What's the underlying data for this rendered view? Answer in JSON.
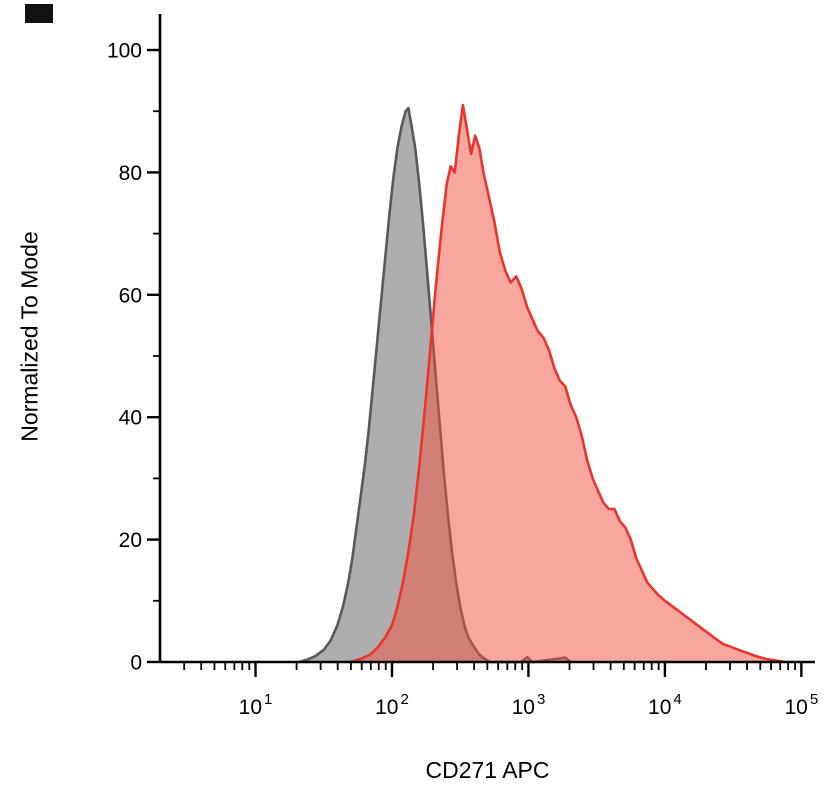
{
  "chart_data": {
    "type": "area",
    "subtype": "flow-cytometry-histogram",
    "title": "",
    "xlabel": "CD271 APC",
    "ylabel": "Normalized To Mode",
    "x_scale": "log10",
    "x_log_range": [
      0.3,
      5.1
    ],
    "ylim": [
      0,
      100
    ],
    "y_major_ticks": [
      0,
      20,
      40,
      60,
      80,
      100
    ],
    "y_minor_step": 10,
    "x_decade_ticks": [
      1,
      2,
      3,
      4,
      5
    ],
    "grid": false,
    "legend": null,
    "axis_color": "#000000",
    "series": [
      {
        "name": "gray-filled-histogram",
        "color": "#58595b",
        "fill": "#7d7d7d",
        "fill_opacity": 0.62,
        "points_logx_y": [
          [
            1.32,
            0
          ],
          [
            1.38,
            0.4
          ],
          [
            1.44,
            1
          ],
          [
            1.5,
            2
          ],
          [
            1.55,
            3.5
          ],
          [
            1.6,
            6
          ],
          [
            1.64,
            9
          ],
          [
            1.68,
            13
          ],
          [
            1.71,
            17
          ],
          [
            1.74,
            22
          ],
          [
            1.77,
            27
          ],
          [
            1.8,
            32
          ],
          [
            1.83,
            38
          ],
          [
            1.86,
            45
          ],
          [
            1.89,
            52
          ],
          [
            1.92,
            59
          ],
          [
            1.95,
            66
          ],
          [
            1.98,
            73
          ],
          [
            2.01,
            79
          ],
          [
            2.04,
            84
          ],
          [
            2.07,
            87.5
          ],
          [
            2.1,
            90
          ],
          [
            2.12,
            90.5
          ],
          [
            2.14,
            88
          ],
          [
            2.17,
            84
          ],
          [
            2.2,
            78
          ],
          [
            2.23,
            71
          ],
          [
            2.26,
            63
          ],
          [
            2.29,
            55
          ],
          [
            2.32,
            47
          ],
          [
            2.35,
            39
          ],
          [
            2.38,
            31
          ],
          [
            2.41,
            24
          ],
          [
            2.44,
            18
          ],
          [
            2.47,
            13
          ],
          [
            2.5,
            9
          ],
          [
            2.53,
            6
          ],
          [
            2.56,
            4
          ],
          [
            2.6,
            2.5
          ],
          [
            2.64,
            1.2
          ],
          [
            2.68,
            0.5
          ],
          [
            2.72,
            0
          ],
          [
            2.95,
            0
          ],
          [
            2.99,
            0.8
          ],
          [
            3.03,
            0
          ],
          [
            3.27,
            0.7
          ],
          [
            3.31,
            0
          ]
        ]
      },
      {
        "name": "red-filled-histogram",
        "color": "#e8352d",
        "fill": "#f04f3e",
        "fill_opacity": 0.5,
        "points_logx_y": [
          [
            1.7,
            0
          ],
          [
            1.78,
            0.6
          ],
          [
            1.84,
            1.2
          ],
          [
            1.9,
            2.5
          ],
          [
            1.95,
            4
          ],
          [
            2.0,
            6
          ],
          [
            2.04,
            9
          ],
          [
            2.08,
            13
          ],
          [
            2.12,
            18
          ],
          [
            2.16,
            24
          ],
          [
            2.2,
            32
          ],
          [
            2.24,
            41
          ],
          [
            2.28,
            51
          ],
          [
            2.32,
            61
          ],
          [
            2.36,
            70
          ],
          [
            2.4,
            78
          ],
          [
            2.43,
            81
          ],
          [
            2.46,
            80
          ],
          [
            2.49,
            86
          ],
          [
            2.52,
            91
          ],
          [
            2.55,
            87
          ],
          [
            2.58,
            83
          ],
          [
            2.61,
            86
          ],
          [
            2.64,
            84
          ],
          [
            2.67,
            80
          ],
          [
            2.71,
            76
          ],
          [
            2.75,
            72
          ],
          [
            2.79,
            67
          ],
          [
            2.83,
            64
          ],
          [
            2.87,
            62
          ],
          [
            2.91,
            63
          ],
          [
            2.95,
            61
          ],
          [
            2.99,
            58
          ],
          [
            3.03,
            56
          ],
          [
            3.07,
            54
          ],
          [
            3.11,
            53
          ],
          [
            3.15,
            51
          ],
          [
            3.19,
            48
          ],
          [
            3.23,
            46
          ],
          [
            3.27,
            45
          ],
          [
            3.31,
            42
          ],
          [
            3.35,
            40
          ],
          [
            3.39,
            37
          ],
          [
            3.43,
            33
          ],
          [
            3.47,
            30
          ],
          [
            3.51,
            28
          ],
          [
            3.55,
            26
          ],
          [
            3.59,
            25
          ],
          [
            3.63,
            25
          ],
          [
            3.67,
            23
          ],
          [
            3.71,
            22
          ],
          [
            3.75,
            20
          ],
          [
            3.79,
            17
          ],
          [
            3.83,
            15
          ],
          [
            3.87,
            13
          ],
          [
            3.91,
            12
          ],
          [
            3.95,
            11
          ],
          [
            4.0,
            10
          ],
          [
            4.06,
            9
          ],
          [
            4.12,
            8
          ],
          [
            4.18,
            7
          ],
          [
            4.24,
            6
          ],
          [
            4.3,
            5
          ],
          [
            4.36,
            4
          ],
          [
            4.42,
            3
          ],
          [
            4.48,
            2.5
          ],
          [
            4.54,
            2
          ],
          [
            4.6,
            1.5
          ],
          [
            4.66,
            1
          ],
          [
            4.74,
            0.5
          ],
          [
            4.88,
            0
          ]
        ]
      }
    ]
  }
}
